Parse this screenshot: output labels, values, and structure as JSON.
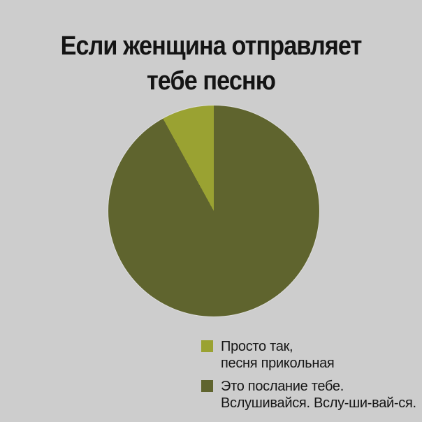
{
  "page": {
    "background_color": "#cdcdcd",
    "text_color": "#141414"
  },
  "title": {
    "lines": [
      "Если женщина отправляет",
      "тебе песню"
    ]
  },
  "chart_data": {
    "type": "pie",
    "title": "Если женщина отправляет тебе песню",
    "slices": [
      {
        "label": "Просто так, песня прикольная",
        "value": 8,
        "color": "#9aa232"
      },
      {
        "label": "Это послание тебе. Вслушивайся. Вслу-ши-вай-ся.",
        "value": 92,
        "color": "#5f642e"
      }
    ],
    "layout": {
      "legend_position": "bottom-right",
      "small_slice_ends_at": "12 o'clock",
      "data_labels": "none",
      "axes": "none"
    }
  },
  "legend": {
    "items": [
      {
        "color": "#9aa232",
        "lines": [
          "Просто так,",
          "песня прикольная"
        ]
      },
      {
        "color": "#5f642e",
        "lines": [
          "Это послание тебе.",
          "Вслушивайся. Вслу-ши-вай-ся."
        ]
      }
    ]
  }
}
